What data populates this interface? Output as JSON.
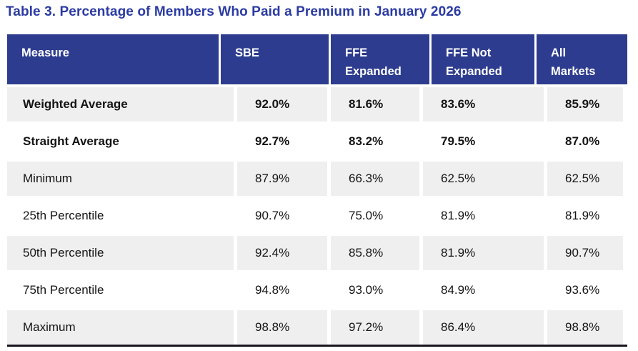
{
  "title": "Table 3. Percentage of Members Who Paid a Premium in January 2026",
  "colors": {
    "title_text": "#2b3ba3",
    "header_bg": "#2d3c8e",
    "header_text": "#ffffff",
    "row_alt_bg": "#f0eff0",
    "body_text": "#141414",
    "bottom_rule": "#16171f"
  },
  "table": {
    "columns": [
      {
        "label": "Measure",
        "line1": "Measure"
      },
      {
        "label": "SBE",
        "line1": "SBE"
      },
      {
        "label": "FFE Expanded",
        "line1": "FFE",
        "line2": "Expanded"
      },
      {
        "label": "FFE Not Expanded",
        "line1": "FFE Not",
        "line2": "Expanded"
      },
      {
        "label": "All Markets",
        "line1": "All",
        "line2": "Markets"
      }
    ],
    "rows": [
      {
        "measure": "Weighted Average",
        "bold": true,
        "values": [
          "92.0%",
          "81.6%",
          "83.6%",
          "85.9%"
        ]
      },
      {
        "measure": "Straight Average",
        "bold": true,
        "values": [
          "92.7%",
          "83.2%",
          "79.5%",
          "87.0%"
        ]
      },
      {
        "measure": "Minimum",
        "bold": false,
        "values": [
          "87.9%",
          "66.3%",
          "62.5%",
          "62.5%"
        ]
      },
      {
        "measure": "25th Percentile",
        "bold": false,
        "values": [
          "90.7%",
          "75.0%",
          "81.9%",
          "81.9%"
        ]
      },
      {
        "measure": "50th Percentile",
        "bold": false,
        "values": [
          "92.4%",
          "85.8%",
          "81.9%",
          "90.7%"
        ]
      },
      {
        "measure": "75th Percentile",
        "bold": false,
        "values": [
          "94.8%",
          "93.0%",
          "84.9%",
          "93.6%"
        ]
      },
      {
        "measure": "Maximum",
        "bold": false,
        "values": [
          "98.8%",
          "97.2%",
          "86.4%",
          "98.8%"
        ]
      }
    ]
  }
}
